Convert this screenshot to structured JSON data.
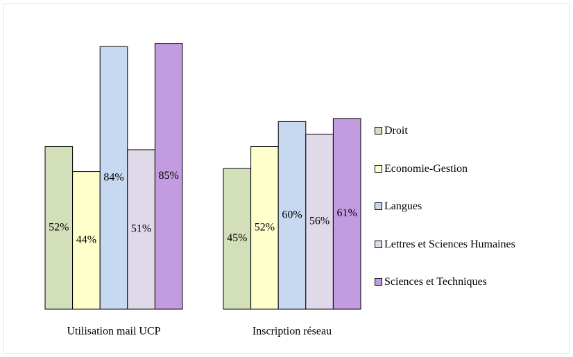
{
  "chart_data": {
    "type": "bar",
    "categories": [
      "Utilisation mail UCP",
      "Inscription réseau"
    ],
    "series": [
      {
        "name": "Droit",
        "color": "#d3dfb8",
        "values": [
          52,
          45
        ],
        "value_labels": [
          "52%",
          "45%"
        ]
      },
      {
        "name": "Economie-Gestion",
        "color": "#ffffcc",
        "values": [
          44,
          52
        ],
        "value_labels": [
          "44%",
          "52%"
        ]
      },
      {
        "name": "Langues",
        "color": "#c6d9f1",
        "values": [
          84,
          60
        ],
        "value_labels": [
          "84%",
          "60%"
        ]
      },
      {
        "name": "Lettres et Sciences Humaines",
        "color": "#e0d9ea",
        "values": [
          51,
          56
        ],
        "value_labels": [
          "51%",
          "56%"
        ]
      },
      {
        "name": "Sciences et Techniques",
        "color": "#c39be0",
        "values": [
          85,
          61
        ],
        "value_labels": [
          "85%",
          "61%"
        ]
      }
    ],
    "legend": "right"
  }
}
